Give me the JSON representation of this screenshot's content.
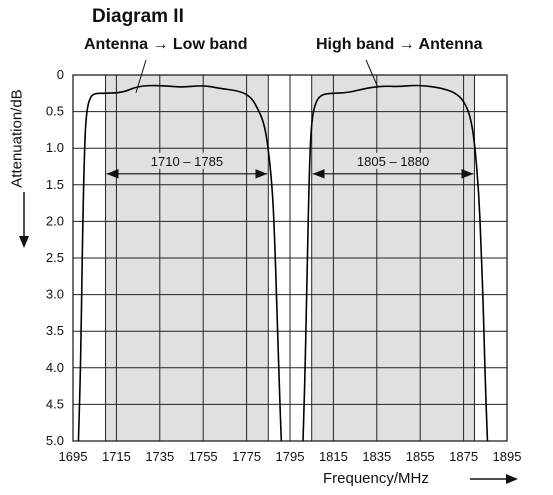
{
  "chart_data": {
    "type": "line",
    "title": "Diagram II",
    "subtitles": [
      "Antenna → Low band",
      "High band → Antenna"
    ],
    "xlabel": "Frequency/MHz",
    "ylabel": "Attenuation/dB",
    "xlim": [
      1695,
      1895
    ],
    "ylim": [
      0,
      5.0
    ],
    "y_inverted": true,
    "x_ticks": [
      1695,
      1715,
      1735,
      1755,
      1775,
      1795,
      1815,
      1835,
      1855,
      1875,
      1895
    ],
    "y_ticks": [
      "0",
      "0.5",
      "1.0",
      "1.5",
      "2.0",
      "2.5",
      "3.0",
      "3.5",
      "4.0",
      "4.5",
      "5.0"
    ],
    "grid": true,
    "shaded_bands": [
      {
        "label": "1710 – 1785",
        "start": 1710,
        "end": 1785
      },
      {
        "label": "1805 – 1880",
        "start": 1805,
        "end": 1880
      }
    ],
    "series": [
      {
        "x": [
          1697.5,
          1698.5,
          1699.5,
          1700.5,
          1701.5,
          1703,
          1705,
          1710,
          1718,
          1725,
          1735,
          1745,
          1755,
          1762,
          1772,
          1777,
          1780,
          1783,
          1785,
          1787,
          1788,
          1789,
          1790,
          1791
        ],
        "y": [
          5.0,
          4.0,
          2.0,
          0.8,
          0.45,
          0.3,
          0.25,
          0.25,
          0.24,
          0.15,
          0.14,
          0.17,
          0.14,
          0.18,
          0.22,
          0.3,
          0.45,
          0.65,
          1.0,
          1.6,
          2.3,
          3.2,
          4.2,
          5.0
        ]
      },
      {
        "x": [
          1801,
          1802,
          1803,
          1804,
          1805,
          1807,
          1810,
          1815,
          1822,
          1830,
          1838,
          1845,
          1852,
          1858,
          1865,
          1871,
          1875,
          1878,
          1880,
          1882,
          1883,
          1884,
          1885,
          1886
        ],
        "y": [
          5.0,
          4.0,
          2.5,
          1.2,
          0.6,
          0.35,
          0.26,
          0.25,
          0.24,
          0.18,
          0.15,
          0.16,
          0.14,
          0.15,
          0.18,
          0.24,
          0.35,
          0.55,
          0.9,
          1.6,
          2.3,
          3.1,
          4.2,
          5.0
        ]
      }
    ]
  }
}
